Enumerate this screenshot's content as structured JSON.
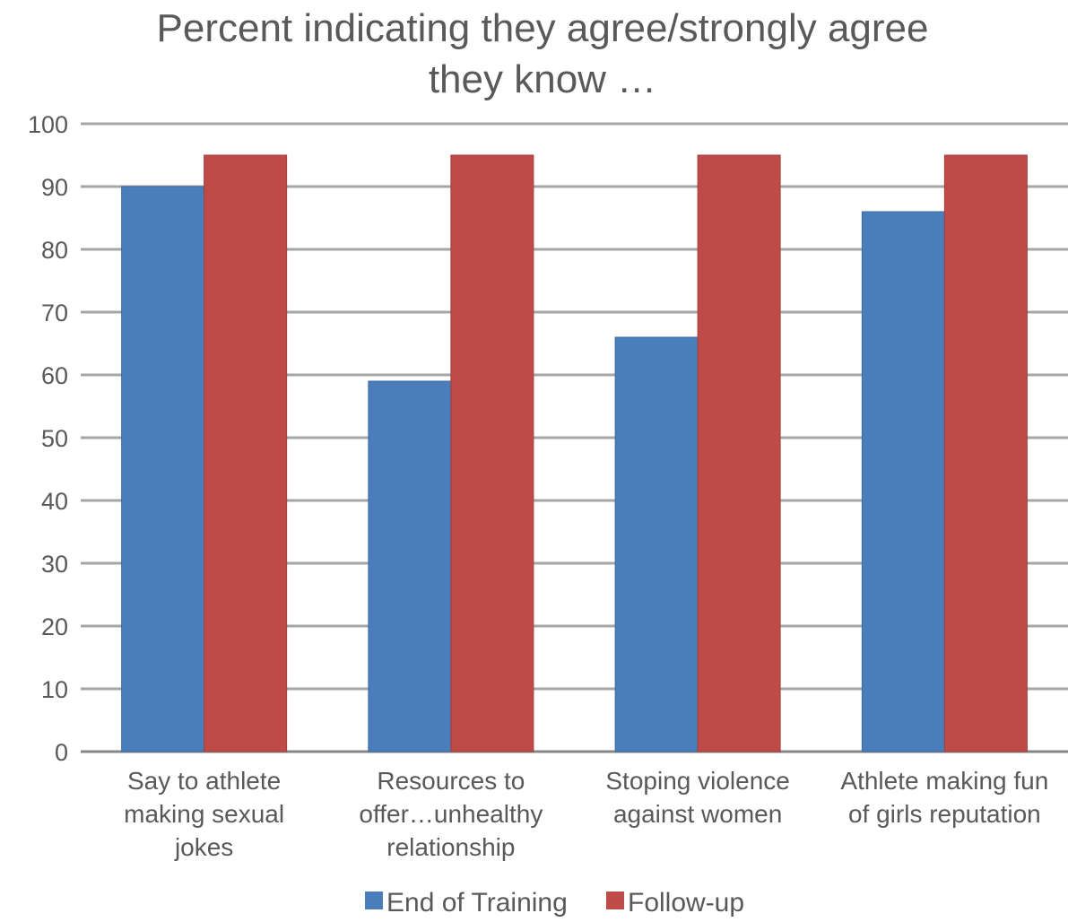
{
  "chart_data": {
    "type": "bar",
    "title": "Percent indicating they agree/strongly agree they know …",
    "title_lines": [
      "Percent indicating they agree/strongly agree",
      "they know …"
    ],
    "categories": [
      "Say to athlete making sexual jokes",
      "Resources to offer…unhealthy relationship",
      "Stoping violence against women",
      "Athlete making fun of girls reputation"
    ],
    "category_lines": [
      [
        "Say to athlete",
        "making sexual",
        "jokes"
      ],
      [
        "Resources to",
        "offer…unhealthy",
        "relationship"
      ],
      [
        "Stoping violence",
        "against women"
      ],
      [
        "Athlete making fun",
        "of girls reputation"
      ]
    ],
    "series": [
      {
        "name": "End of Training",
        "color": "#4a7ebb",
        "values": [
          90,
          59,
          66,
          86
        ]
      },
      {
        "name": "Follow-up",
        "color": "#be4b48",
        "values": [
          95,
          95,
          95,
          95
        ]
      }
    ],
    "ylim": [
      0,
      100
    ],
    "yticks": [
      "0",
      "10",
      "20",
      "30",
      "40",
      "50",
      "60",
      "70",
      "80",
      "90",
      "100"
    ],
    "grid": true,
    "legend_position": "bottom"
  }
}
